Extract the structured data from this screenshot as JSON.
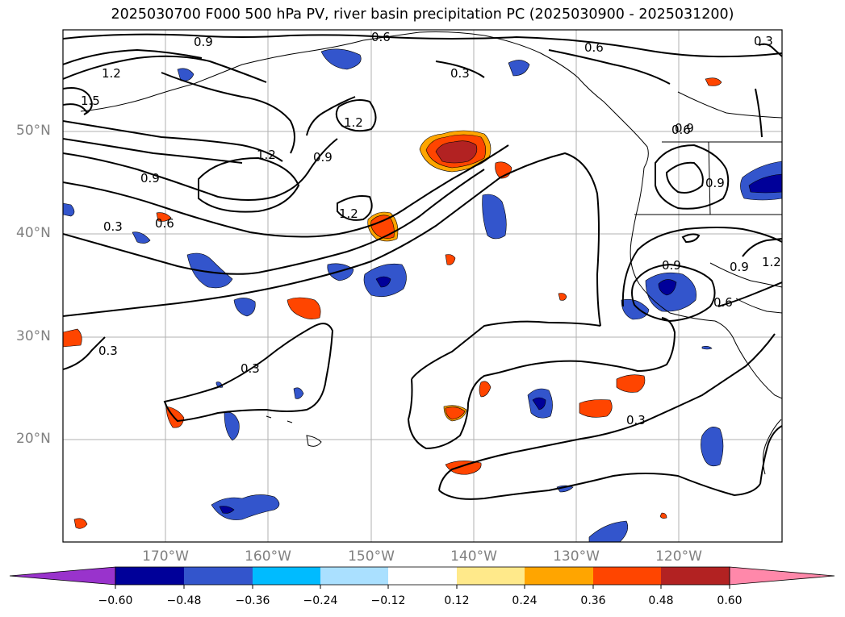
{
  "title": "2025030700 F000 500 hPa PV, river basin precipitation PC (2025030900 - 2025031200)",
  "map": {
    "lat_labels": [
      "50°N",
      "40°N",
      "30°N",
      "20°N"
    ],
    "lon_labels": [
      "170°W",
      "160°W",
      "150°W",
      "140°W",
      "130°W",
      "120°W"
    ],
    "contour_labels": [
      "0.9",
      "0.6",
      "0.6",
      "0.3",
      "0.3",
      "1.2",
      "1.5",
      "1.2",
      "1.2",
      "0.9",
      "0.9",
      "1.2",
      "0.9",
      "0.6",
      "0.3",
      "0.6",
      "0.9",
      "0.9",
      "0.9",
      "1.2",
      "0.6",
      "0.3",
      "0.3",
      "0.3"
    ]
  },
  "colorbar": {
    "ticks": [
      "−0.60",
      "−0.48",
      "−0.36",
      "−0.24",
      "−0.12",
      "0.12",
      "0.24",
      "0.36",
      "0.48",
      "0.60"
    ],
    "colors": [
      "#9933cc",
      "#000099",
      "#3355cc",
      "#00bbff",
      "#aae0ff",
      "#ffffff",
      "#ffe98a",
      "#ffa500",
      "#ff4500",
      "#b22222",
      "#ff88aa"
    ]
  }
}
